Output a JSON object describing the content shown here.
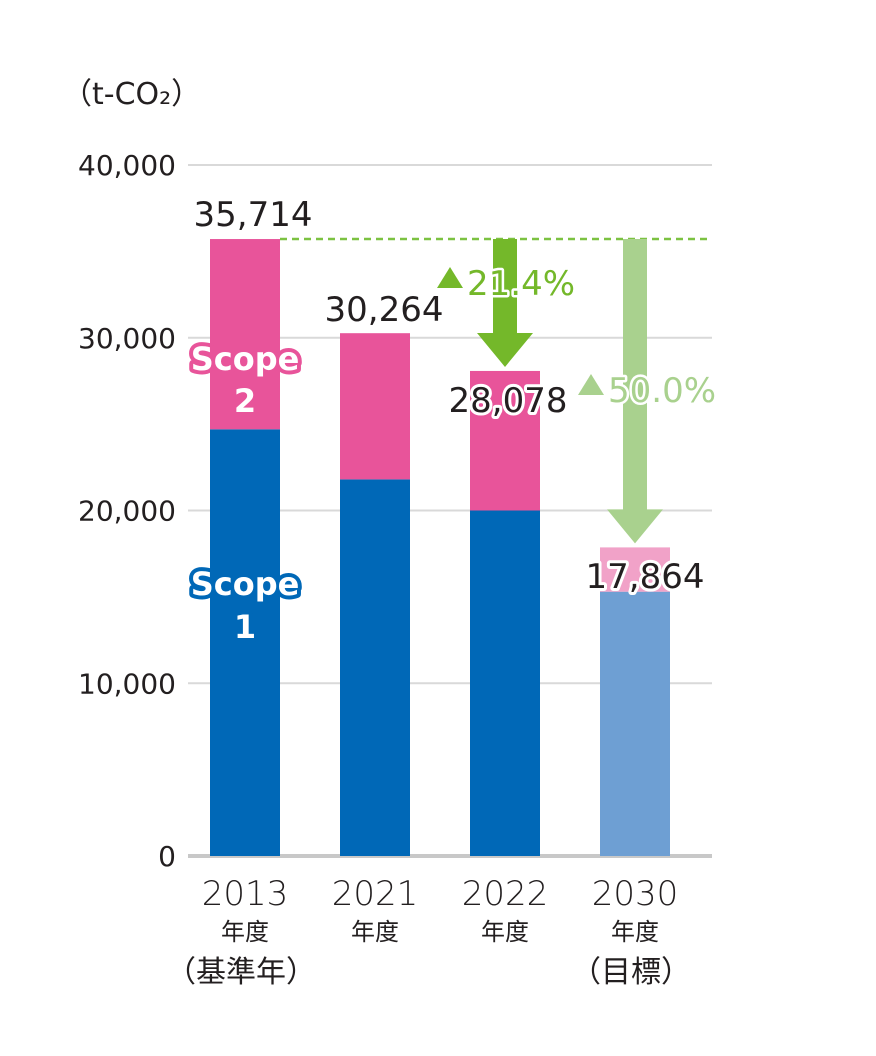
{
  "chart_data": {
    "type": "bar",
    "stacked": true,
    "unit_label": "（t-CO₂）",
    "categories": [
      {
        "year": "2013",
        "sub": "年度",
        "note": "（基準年）"
      },
      {
        "year": "2021",
        "sub": "年度",
        "note": ""
      },
      {
        "year": "2022",
        "sub": "年度",
        "note": ""
      },
      {
        "year": "2030",
        "sub": "年度",
        "note": "（目標）"
      }
    ],
    "series": [
      {
        "name": "Scope 1",
        "label_line1": "Scope",
        "label_line2": "1",
        "values": [
          24700,
          21800,
          20000,
          15300
        ],
        "color": "#0068b7",
        "target_color": "#6e9fd3"
      },
      {
        "name": "Scope 2",
        "label_line1": "Scope",
        "label_line2": "2",
        "values": [
          11014,
          8464,
          8078,
          2564
        ],
        "color": "#e8549a",
        "target_color": "#f1a2c8"
      }
    ],
    "totals": [
      "35,714",
      "30,264",
      "28,078",
      "17,864"
    ],
    "total_values": [
      35714,
      30264,
      28078,
      17864
    ],
    "ylim": [
      0,
      40000
    ],
    "yticks": [
      0,
      10000,
      20000,
      30000,
      40000
    ],
    "ytick_labels": [
      "0",
      "10,000",
      "20,000",
      "30,000",
      "40,000"
    ],
    "reference_line_value": 35714,
    "annotations": [
      {
        "text": "21.4%",
        "category_index": 2,
        "color": "#74b82a",
        "from": 35714,
        "to": 28078
      },
      {
        "text": "50.0%",
        "category_index": 3,
        "color": "#a9d18e",
        "from": 35714,
        "to": 17864
      }
    ]
  }
}
